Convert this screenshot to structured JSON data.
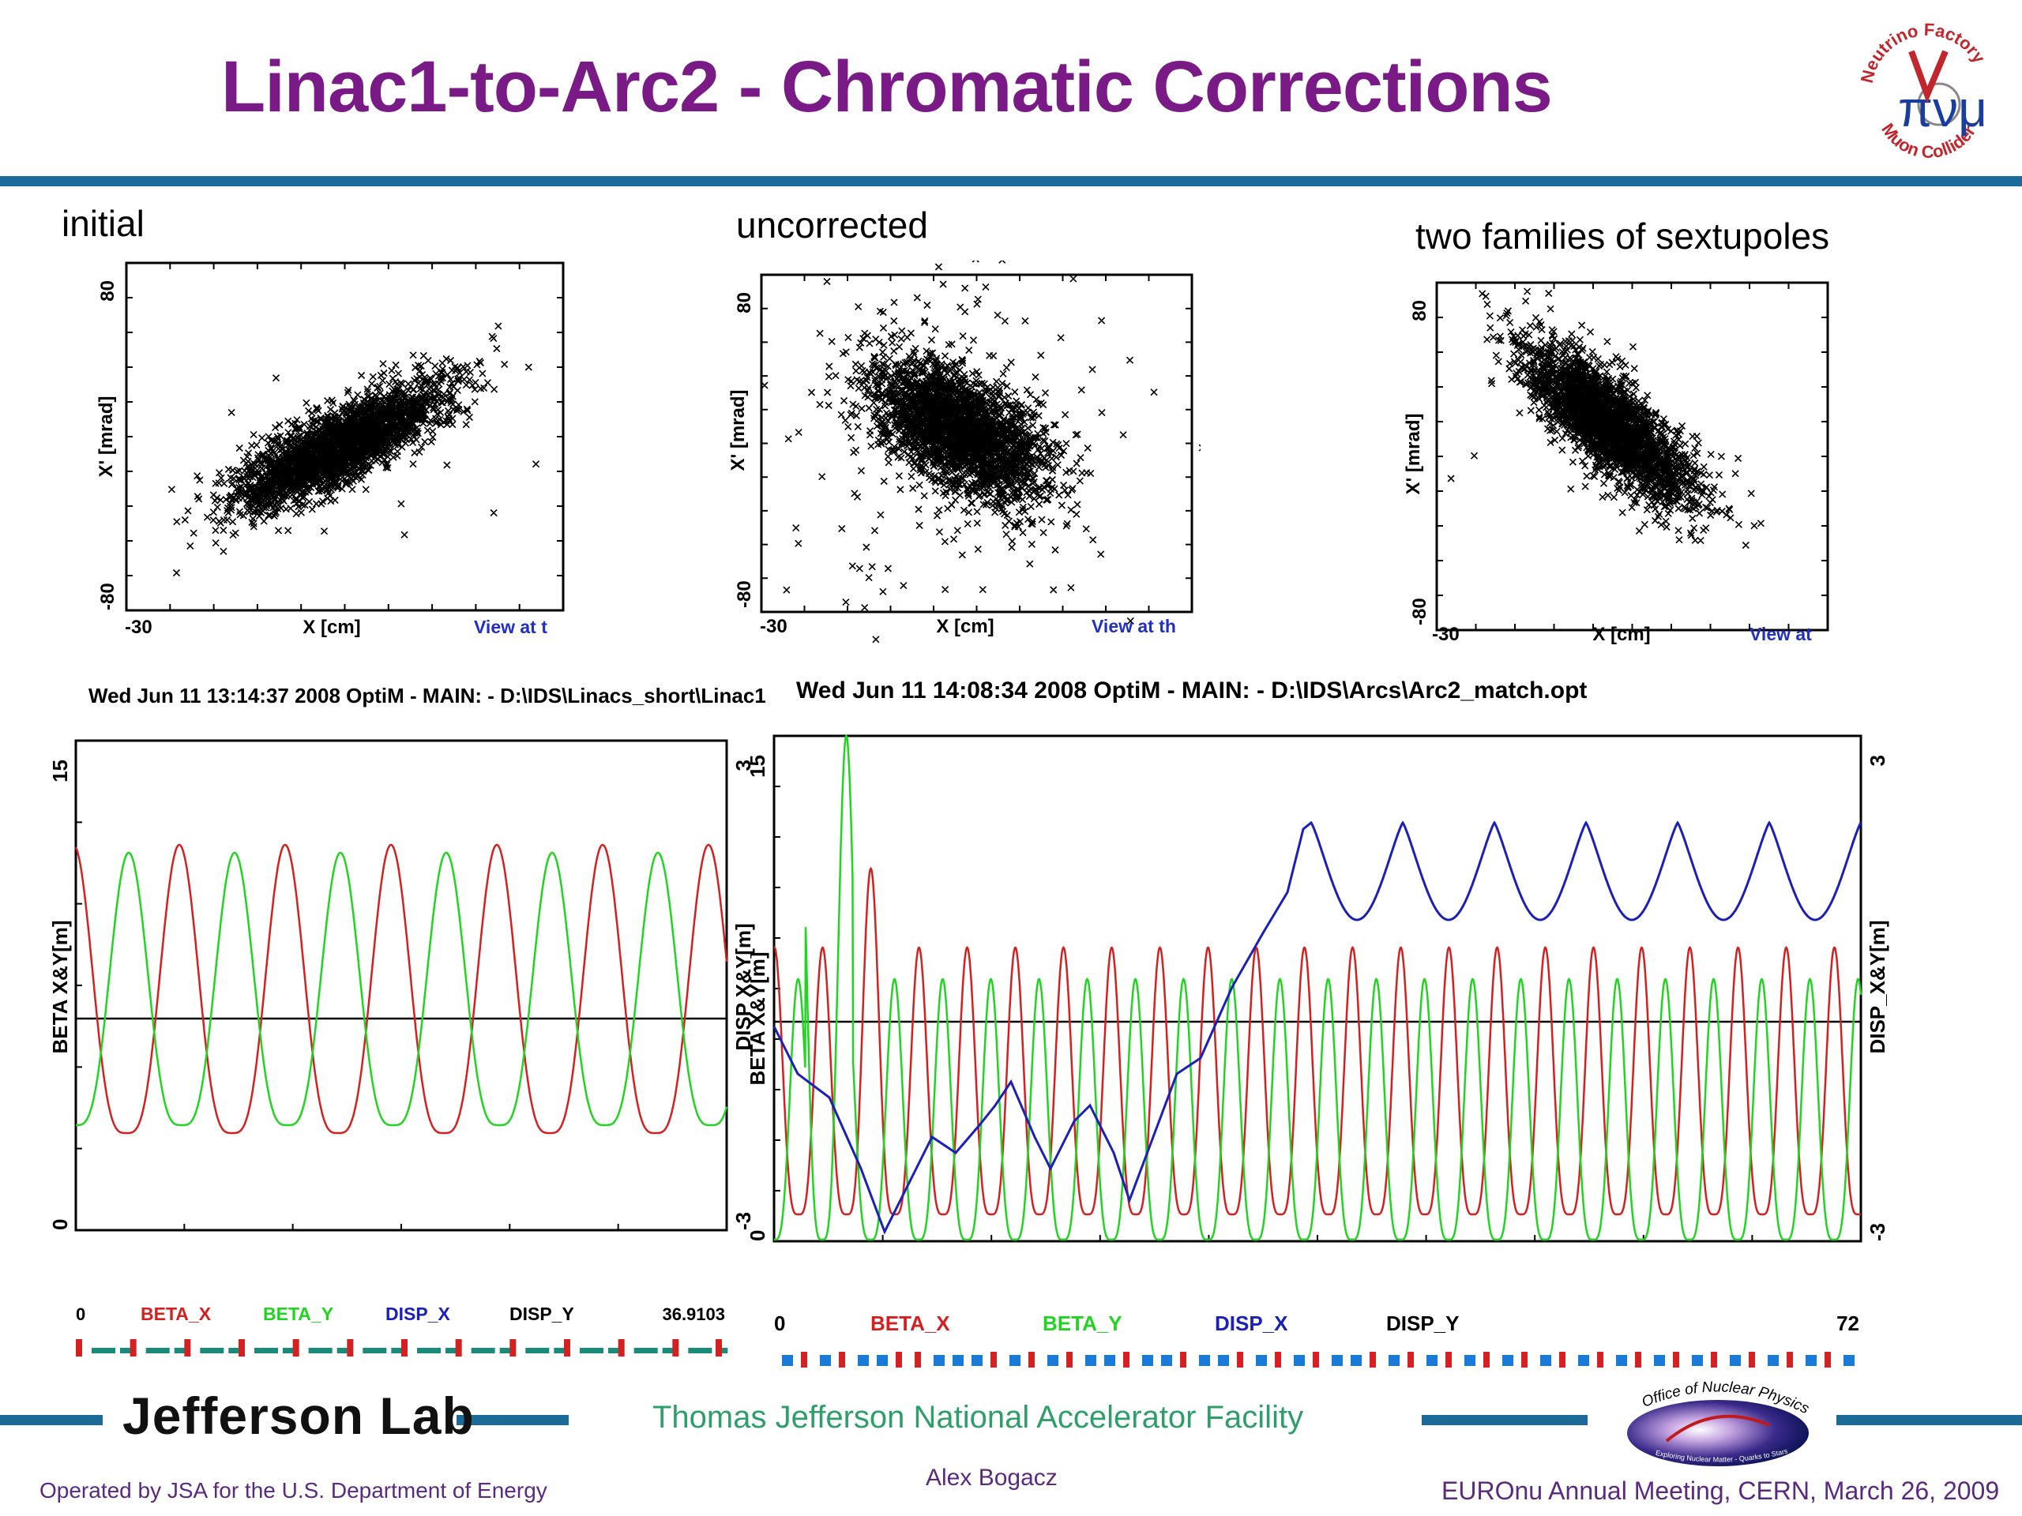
{
  "title": "Linac1-to-Arc2 -  Chromatic Corrections",
  "logo_nf": {
    "top_text": "Neutrino Factory",
    "bottom_text": "Muon Collider",
    "glyphs": "πνμ"
  },
  "phase_space": [
    {
      "label": "initial",
      "xlabel": "X [cm]",
      "ylabel": "X' [mrad]",
      "x_min_label": "-30",
      "y_max_label": "80",
      "y_min_label": "-80",
      "view_label": "View at t",
      "orientation": "positive"
    },
    {
      "label": "uncorrected",
      "xlabel": "X [cm]",
      "ylabel": "X' [mrad]",
      "x_min_label": "-30",
      "y_max_label": "80",
      "y_min_label": "-80",
      "view_label": "View at th",
      "orientation": "negative-wide"
    },
    {
      "label": "two families of sextupoles",
      "xlabel": "X [cm]",
      "ylabel": "X' [mrad]",
      "x_min_label": "-30",
      "y_max_label": "80",
      "y_min_label": "-80",
      "view_label": "View at",
      "orientation": "negative"
    }
  ],
  "lattice_left": {
    "header": "Wed Jun 11 13:14:37 2008     OptiM - MAIN: - D:\\IDS\\Linacs_short\\Linac1",
    "y_left_label": "BETA  X&Y[m]",
    "y_left_max": "15",
    "y_left_min": "0",
    "y_right_label": "DISP  X&Y[m]",
    "y_right_max": "3",
    "y_right_min": "-3",
    "x_min": "0",
    "x_max": "36.9103",
    "legend": [
      "BETA_X",
      "BETA_Y",
      "DISP_X",
      "DISP_Y"
    ]
  },
  "lattice_right": {
    "header": "Wed Jun 11 14:08:34 2008     OptiM - MAIN: - D:\\IDS\\Arcs\\Arc2_match.opt",
    "y_left_label": "BETA  X&Y[m]",
    "y_left_max": "15",
    "y_left_min": "0",
    "y_right_label": "DISP_X&Y[m]",
    "y_right_max": "3",
    "y_right_min": "-3",
    "x_min": "0",
    "x_max": "72",
    "legend": [
      "BETA_X",
      "BETA_Y",
      "DISP_X",
      "DISP_Y"
    ]
  },
  "colors": {
    "title": "#7a1a87",
    "bar": "#1b6a9a",
    "beta_x": "#d42020",
    "beta_y": "#22d422",
    "disp_x": "#1a20b8",
    "disp_y": "#000000",
    "footer_text": "#5a2a80",
    "tjnaf": "#2e9e6a"
  },
  "footer": {
    "lab": "Jefferson Lab",
    "facility": "Thomas Jefferson National Accelerator Facility",
    "operated": "Operated by JSA for the U.S. Department of Energy",
    "author": "Alex Bogacz",
    "meeting": "EUROnu Annual Meeting, CERN, March 26, 2009",
    "doe_logo_text": "Office of Nuclear Physics",
    "doe_logo_sub": "Exploring Nuclear Matter - Quarks to Stars"
  }
}
